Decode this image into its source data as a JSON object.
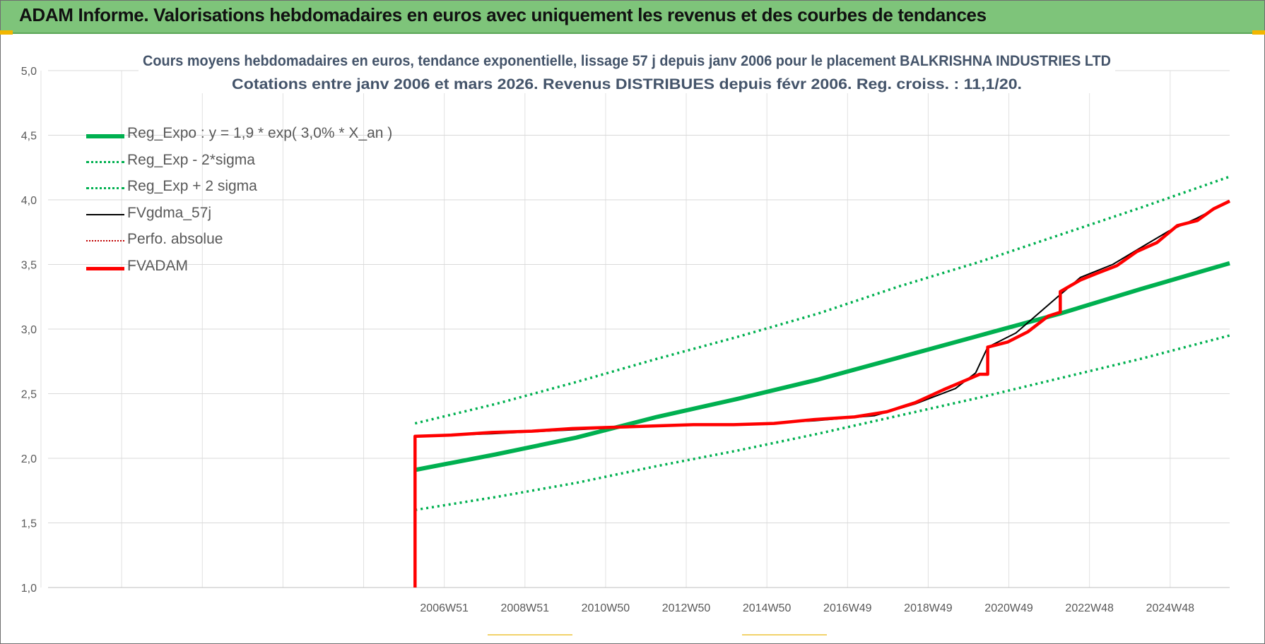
{
  "header": {
    "title": "ADAM Informe. Valorisations hebdomadaires en euros avec uniquement les revenus et des courbes de tendances"
  },
  "colors": {
    "header_bg": "#7ec47a",
    "reg_green": "#00b050",
    "fvgdma_black": "#000000",
    "perfo_red": "#c00000",
    "fvadam_red": "#ff0000",
    "grid": "#d9d9d9",
    "text_gray": "#595959",
    "title_text": "#44546a",
    "accent_yellow": "#f2b600"
  },
  "chart_data": {
    "type": "line",
    "title": "Cours moyens hebdomadaires en euros, tendance exponentielle, lissage 57 j depuis janv 2006  pour le placement BALKRISHNA INDUSTRIES LTD",
    "subtitle": "Cotations entre janv 2006 et mars 2026. Revenus DISTRIBUES depuis févr 2006. Reg. croiss. : 11,1/20.",
    "xlabel": "",
    "ylabel": "",
    "x_range": [
      1997.0,
      2026.3
    ],
    "ylim": [
      1.0,
      5.0
    ],
    "y_ticks": [
      "1,0",
      "1,5",
      "2,0",
      "2,5",
      "3,0",
      "3,5",
      "4,0",
      "4,5",
      "5,0"
    ],
    "x_tick_labels": [
      {
        "label": "2006W51",
        "x": 2007.0
      },
      {
        "label": "2008W51",
        "x": 2009.0
      },
      {
        "label": "2010W50",
        "x": 2011.0
      },
      {
        "label": "2012W50",
        "x": 2013.0
      },
      {
        "label": "2014W50",
        "x": 2015.0
      },
      {
        "label": "2016W49",
        "x": 2017.0
      },
      {
        "label": "2018W49",
        "x": 2019.0
      },
      {
        "label": "2020W49",
        "x": 2021.0
      },
      {
        "label": "2022W48",
        "x": 2023.0
      },
      {
        "label": "2024W48",
        "x": 2025.0
      }
    ],
    "grid": true,
    "legend_position": "top-left",
    "series": [
      {
        "name": "Reg_Expo : y = 1,9 * exp( 3,0% *  X_an )",
        "style": "solid-thick",
        "color": "#00b050",
        "points": [
          [
            2006.1,
            1.91
          ],
          [
            2008.1,
            2.03
          ],
          [
            2010.1,
            2.16
          ],
          [
            2012.1,
            2.32
          ],
          [
            2014.1,
            2.46
          ],
          [
            2016.1,
            2.61
          ],
          [
            2018.1,
            2.78
          ],
          [
            2020.1,
            2.95
          ],
          [
            2022.1,
            3.12
          ],
          [
            2024.1,
            3.31
          ],
          [
            2026.3,
            3.51
          ]
        ]
      },
      {
        "name": "Reg_Exp - 2*sigma",
        "style": "dotted",
        "color": "#00b050",
        "points": [
          [
            2006.1,
            1.6
          ],
          [
            2008.1,
            1.7
          ],
          [
            2010.1,
            1.81
          ],
          [
            2012.1,
            1.94
          ],
          [
            2014.1,
            2.06
          ],
          [
            2016.1,
            2.19
          ],
          [
            2018.1,
            2.33
          ],
          [
            2020.1,
            2.47
          ],
          [
            2022.1,
            2.62
          ],
          [
            2024.1,
            2.77
          ],
          [
            2026.3,
            2.95
          ]
        ]
      },
      {
        "name": "Reg_Exp + 2 sigma",
        "style": "dotted",
        "color": "#00b050",
        "points": [
          [
            2006.1,
            2.27
          ],
          [
            2008.1,
            2.42
          ],
          [
            2010.1,
            2.59
          ],
          [
            2012.1,
            2.77
          ],
          [
            2014.1,
            2.94
          ],
          [
            2016.1,
            3.12
          ],
          [
            2018.1,
            3.33
          ],
          [
            2020.1,
            3.52
          ],
          [
            2022.1,
            3.73
          ],
          [
            2024.1,
            3.94
          ],
          [
            2026.3,
            4.18
          ]
        ]
      },
      {
        "name": "FVgdma_57j",
        "style": "solid-thin",
        "color": "#000000",
        "points": [
          [
            2006.15,
            2.17
          ],
          [
            2008.0,
            2.19
          ],
          [
            2010.0,
            2.22
          ],
          [
            2012.0,
            2.25
          ],
          [
            2014.0,
            2.26
          ],
          [
            2016.0,
            2.29
          ],
          [
            2017.5,
            2.33
          ],
          [
            2018.5,
            2.42
          ],
          [
            2019.5,
            2.54
          ],
          [
            2020.0,
            2.66
          ],
          [
            2020.3,
            2.86
          ],
          [
            2021.0,
            2.97
          ],
          [
            2022.0,
            3.24
          ],
          [
            2022.6,
            3.4
          ],
          [
            2023.4,
            3.5
          ],
          [
            2024.2,
            3.65
          ],
          [
            2024.8,
            3.76
          ],
          [
            2025.5,
            3.86
          ],
          [
            2026.3,
            3.99
          ]
        ]
      },
      {
        "name": "Perfo. absolue",
        "style": "dotted-thin",
        "color": "#c00000",
        "points": []
      },
      {
        "name": "FVADAM",
        "style": "solid-thick",
        "color": "#ff0000",
        "points": [
          [
            2006.1,
            1.0
          ],
          [
            2006.1,
            2.17
          ],
          [
            2007.0,
            2.18
          ],
          [
            2008.0,
            2.2
          ],
          [
            2009.0,
            2.21
          ],
          [
            2010.0,
            2.23
          ],
          [
            2011.0,
            2.24
          ],
          [
            2012.0,
            2.25
          ],
          [
            2013.0,
            2.26
          ],
          [
            2014.0,
            2.26
          ],
          [
            2015.0,
            2.27
          ],
          [
            2016.0,
            2.3
          ],
          [
            2017.0,
            2.32
          ],
          [
            2017.8,
            2.36
          ],
          [
            2018.5,
            2.43
          ],
          [
            2019.2,
            2.53
          ],
          [
            2019.8,
            2.61
          ],
          [
            2020.1,
            2.65
          ],
          [
            2020.3,
            2.65
          ],
          [
            2020.3,
            2.86
          ],
          [
            2020.8,
            2.9
          ],
          [
            2021.3,
            2.98
          ],
          [
            2021.8,
            3.1
          ],
          [
            2022.1,
            3.13
          ],
          [
            2022.1,
            3.29
          ],
          [
            2022.6,
            3.38
          ],
          [
            2023.0,
            3.43
          ],
          [
            2023.5,
            3.49
          ],
          [
            2024.0,
            3.6
          ],
          [
            2024.5,
            3.67
          ],
          [
            2025.0,
            3.8
          ],
          [
            2025.5,
            3.84
          ],
          [
            2025.9,
            3.93
          ],
          [
            2026.3,
            3.99
          ]
        ]
      }
    ]
  }
}
